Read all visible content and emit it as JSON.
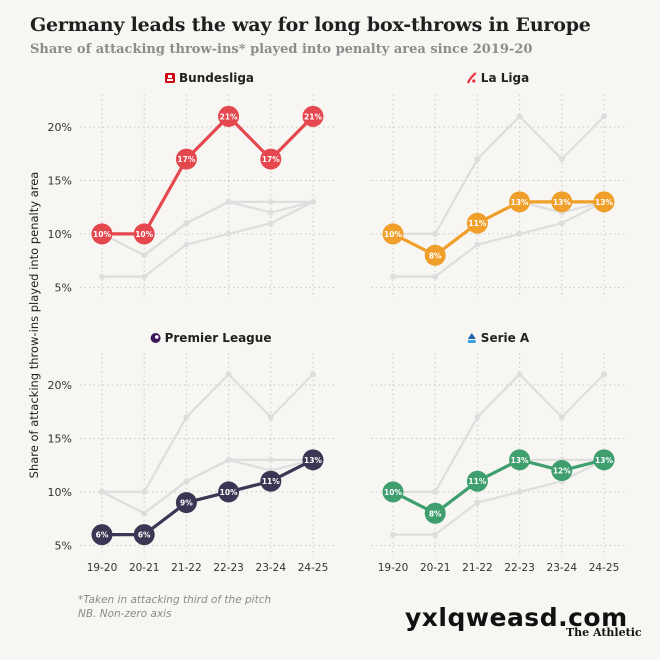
{
  "title": "Germany leads the way for long box-throws in Europe",
  "subtitle": "Share of attacking throw-ins* played into penalty area since 2019-20",
  "footnotes": [
    "*Taken in attacking third of the pitch",
    "NB. Non-zero axis"
  ],
  "watermark": "yxlqweasd.com",
  "brand": "The Athletic",
  "chart_data": {
    "type": "line",
    "ylabel": "Share of attacking throw-ins played into penalty area",
    "categories": [
      "19-20",
      "20-21",
      "21-22",
      "22-23",
      "23-24",
      "24-25"
    ],
    "ylim": [
      4,
      23
    ],
    "yticks": [
      5,
      10,
      15,
      20
    ],
    "ytick_labels": [
      "5%",
      "10%",
      "15%",
      "20%"
    ],
    "grid": true,
    "series": [
      {
        "name": "Bundesliga",
        "icon": "bundesliga-icon",
        "color": "#e5474e",
        "values": [
          10,
          10,
          17,
          21,
          17,
          21
        ],
        "labels": [
          "10%",
          "10%",
          "17%",
          "21%",
          "17%",
          "21%"
        ]
      },
      {
        "name": "La Liga",
        "icon": "laliga-icon",
        "color": "#f0a02a",
        "values": [
          10,
          8,
          11,
          13,
          13,
          13
        ],
        "labels": [
          "10%",
          "8%",
          "11%",
          "13%",
          "13%",
          "13%"
        ]
      },
      {
        "name": "Premier League",
        "icon": "premier-league-icon",
        "color": "#3a3653",
        "values": [
          6,
          6,
          9,
          10,
          11,
          13
        ],
        "labels": [
          "6%",
          "6%",
          "9%",
          "10%",
          "11%",
          "13%"
        ]
      },
      {
        "name": "Serie A",
        "icon": "serie-a-icon",
        "color": "#3f9e6e",
        "values": [
          10,
          8,
          11,
          13,
          12,
          13
        ],
        "labels": [
          "10%",
          "8%",
          "11%",
          "13%",
          "12%",
          "13%"
        ]
      }
    ],
    "background_color": "#dedede"
  }
}
